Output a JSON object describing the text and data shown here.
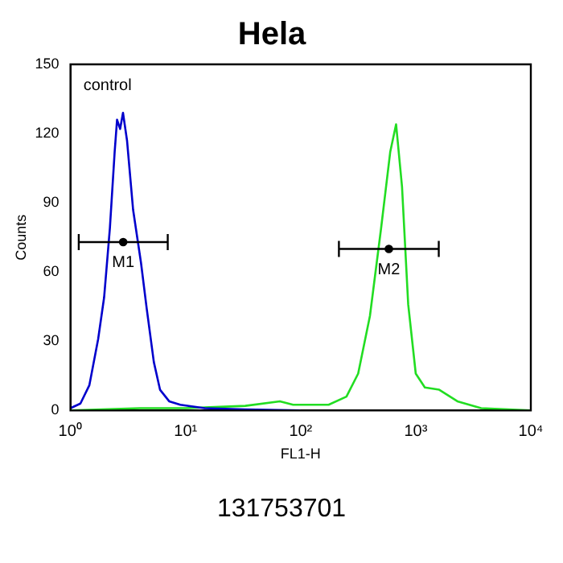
{
  "chart_data": {
    "type": "line",
    "title": "Hela",
    "xlabel": "FL1-H",
    "ylabel": "Counts",
    "log": "x",
    "xlim": [
      1,
      10000
    ],
    "ylim": [
      0,
      150
    ],
    "xticks": [
      {
        "value": 1,
        "label": "10⁰"
      },
      {
        "value": 10,
        "label": "10¹"
      },
      {
        "value": 100,
        "label": "10²"
      },
      {
        "value": 1000,
        "label": "10³"
      },
      {
        "value": 10000,
        "label": "10⁴"
      }
    ],
    "yticks": [
      0,
      30,
      60,
      90,
      120,
      150
    ],
    "grid": false,
    "legend": false,
    "marker": "none",
    "line_style": "solid",
    "series": [
      {
        "color": "#0000cc",
        "x": [
          1,
          1.22,
          1.46,
          1.74,
          1.96,
          2.2,
          2.42,
          2.54,
          2.7,
          2.86,
          3.1,
          3.5,
          4.1,
          4.6,
          5.3,
          6,
          7.2,
          9,
          14.6,
          33,
          100
        ],
        "values": [
          1,
          3,
          11,
          31,
          49,
          79,
          112,
          126,
          122,
          129,
          117,
          87,
          64,
          44,
          21,
          9,
          4,
          2.5,
          1,
          0.5,
          0
        ]
      },
      {
        "color": "#22dd22",
        "x": [
          1,
          4,
          10,
          33,
          66,
          86,
          175,
          250,
          316,
          400,
          500,
          600,
          675,
          760,
          860,
          1000,
          1200,
          1600,
          2300,
          3700,
          10000
        ],
        "values": [
          0,
          1,
          1,
          2,
          4,
          2.5,
          2.5,
          6,
          16,
          41,
          79,
          112,
          124,
          97,
          46,
          16,
          10,
          9,
          4,
          1,
          0
        ]
      },
      {
        "type": "scatter",
        "name": "M1",
        "color": "#000000",
        "marker": "circle",
        "x": [
          2.87
        ],
        "values": [
          73
        ],
        "xerrors": [
          [
            1.18,
            7
          ]
        ]
      },
      {
        "type": "scatter",
        "name": "M2",
        "color": "#000000",
        "marker": "circle",
        "x": [
          584
        ],
        "values": [
          70
        ],
        "xerrors": [
          [
            215,
            1585
          ]
        ]
      }
    ],
    "annotations": [
      "control",
      "131753701"
    ]
  }
}
